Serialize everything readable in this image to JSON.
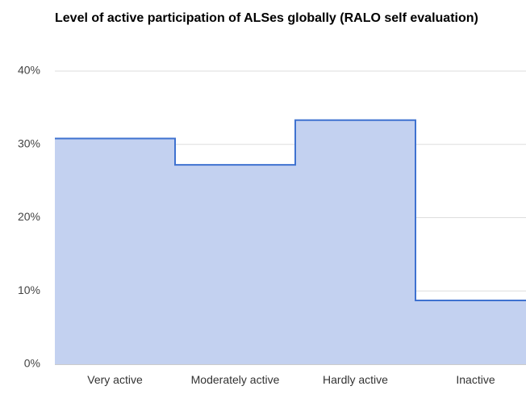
{
  "chart_data": {
    "type": "stepped-area",
    "title": "Level of active participation of ALSes globally (RALO self evaluation)",
    "categories": [
      "Very active",
      "Moderately active",
      "Hardly active",
      "Inactive"
    ],
    "values": [
      30.8,
      27.2,
      33.3,
      8.7
    ],
    "color": "#3f72d0",
    "fill": "#c3d1f0",
    "ylim": [
      0,
      40
    ],
    "yticks": [
      {
        "value": 0,
        "label": "0%"
      },
      {
        "value": 10,
        "label": "10%"
      },
      {
        "value": 20,
        "label": "20%"
      },
      {
        "value": 30,
        "label": "30%"
      },
      {
        "value": 40,
        "label": "40%"
      }
    ],
    "grid": true
  }
}
